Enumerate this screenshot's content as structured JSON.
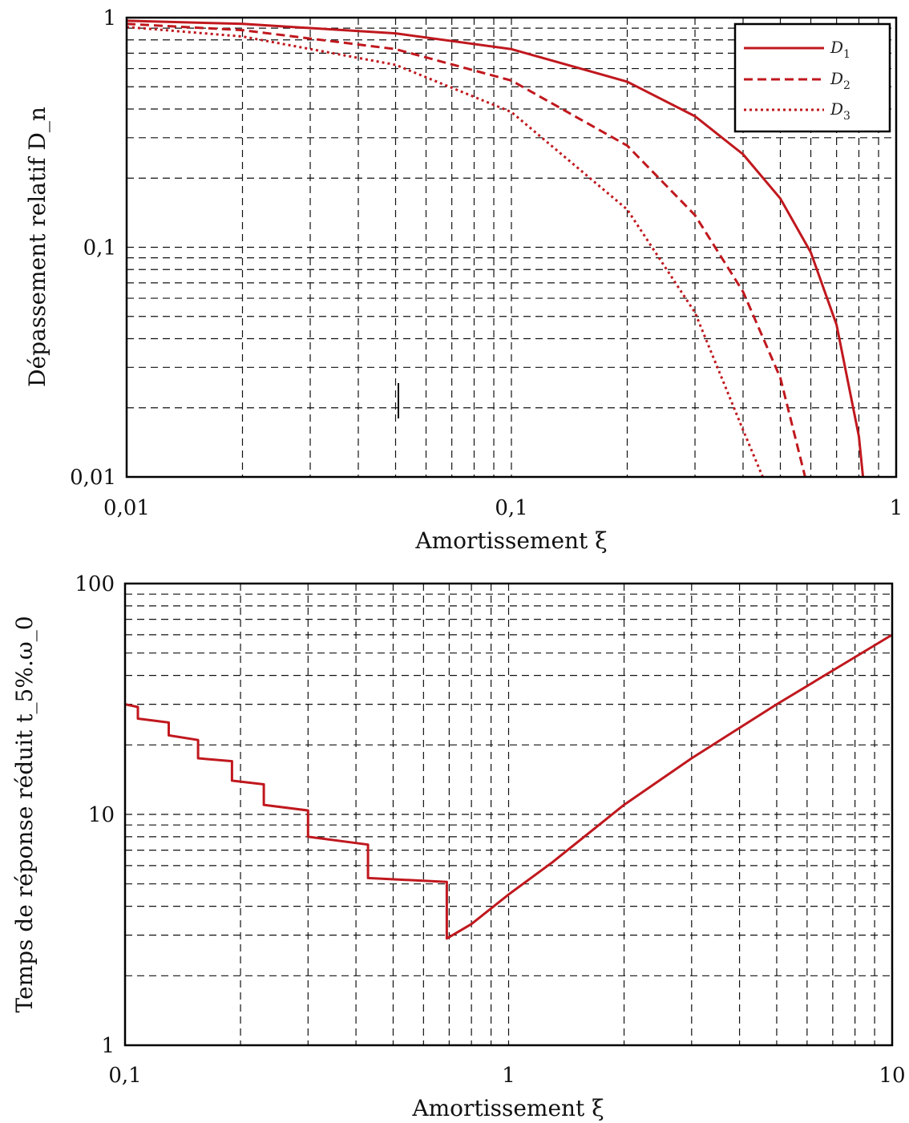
{
  "chart_data": [
    {
      "type": "line",
      "xlabel": "Amortissement ξ",
      "ylabel": "Dépassement relatif D_n",
      "xscale": "log",
      "yscale": "log",
      "xlim": [
        0.01,
        1
      ],
      "ylim": [
        0.01,
        1
      ],
      "xticks": [
        {
          "value": 0.01,
          "label": "0,01"
        },
        {
          "value": 0.1,
          "label": "0,1"
        },
        {
          "value": 1,
          "label": "1"
        }
      ],
      "yticks": [
        {
          "value": 0.01,
          "label": "0,01"
        },
        {
          "value": 0.1,
          "label": "0,1"
        },
        {
          "value": 1,
          "label": "1"
        }
      ],
      "grid": true,
      "legend_position": "top-right",
      "series": [
        {
          "name": "D1",
          "label_main": "D",
          "label_sub": "1",
          "style": "solid",
          "color": "#c0181e",
          "x": [
            0.01,
            0.02,
            0.05,
            0.1,
            0.2,
            0.3,
            0.4,
            0.5,
            0.6,
            0.7,
            0.8,
            0.82
          ],
          "y": [
            0.969,
            0.939,
            0.854,
            0.729,
            0.526,
            0.372,
            0.254,
            0.163,
            0.095,
            0.046,
            0.015,
            0.01
          ]
        },
        {
          "name": "D2",
          "label_main": "D",
          "label_sub": "2",
          "style": "dashed",
          "color": "#c0181e",
          "x": [
            0.01,
            0.02,
            0.05,
            0.1,
            0.2,
            0.3,
            0.4,
            0.5,
            0.58
          ],
          "y": [
            0.939,
            0.882,
            0.729,
            0.532,
            0.277,
            0.138,
            0.064,
            0.027,
            0.01
          ]
        },
        {
          "name": "D3",
          "label_main": "D",
          "label_sub": "3",
          "style": "dotted",
          "color": "#c0181e",
          "x": [
            0.01,
            0.02,
            0.05,
            0.1,
            0.2,
            0.3,
            0.4,
            0.45
          ],
          "y": [
            0.91,
            0.828,
            0.623,
            0.388,
            0.146,
            0.052,
            0.016,
            0.01
          ]
        }
      ]
    },
    {
      "type": "line",
      "xlabel": "Amortissement ξ",
      "ylabel": "Temps de réponse réduit t_5%.ω_0",
      "xscale": "log",
      "yscale": "log",
      "xlim": [
        0.1,
        10
      ],
      "ylim": [
        1,
        100
      ],
      "xticks": [
        {
          "value": 0.1,
          "label": "0,1"
        },
        {
          "value": 1,
          "label": "1"
        },
        {
          "value": 10,
          "label": "10"
        }
      ],
      "yticks": [
        {
          "value": 1,
          "label": "1"
        },
        {
          "value": 10,
          "label": "10"
        },
        {
          "value": 100,
          "label": "100"
        }
      ],
      "grid": true,
      "series": [
        {
          "name": "",
          "style": "solid",
          "color": "#c0181e",
          "x": [
            0.1,
            0.108,
            0.108,
            0.13,
            0.13,
            0.155,
            0.155,
            0.19,
            0.19,
            0.23,
            0.23,
            0.3,
            0.3,
            0.43,
            0.43,
            0.69,
            0.69,
            0.8,
            1.0,
            1.3,
            2.0,
            3.0,
            5.0,
            7.0,
            10.0
          ],
          "y": [
            30,
            29.2,
            26.0,
            25.0,
            22.0,
            21.0,
            17.5,
            17.0,
            14.0,
            13.5,
            11.0,
            10.4,
            8.0,
            7.4,
            5.3,
            5.1,
            2.9,
            3.35,
            4.5,
            6.2,
            11.0,
            17.5,
            30.0,
            42.0,
            60.0
          ]
        }
      ]
    }
  ]
}
